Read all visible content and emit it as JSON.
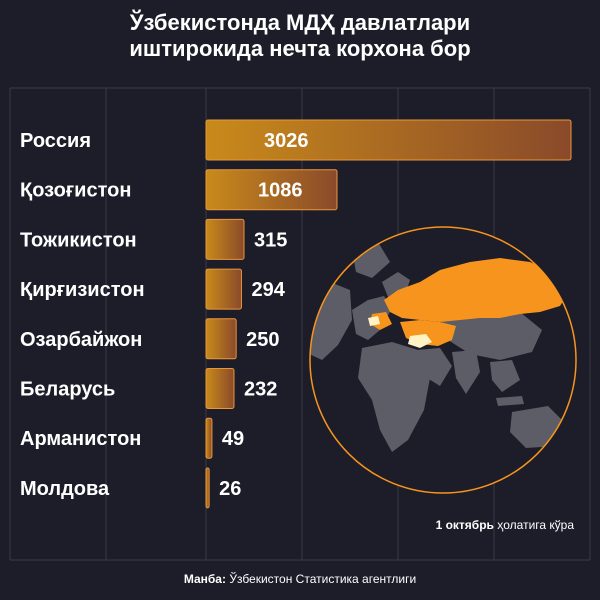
{
  "title_line1": "Ўзбекистонда МДҲ давлатлари",
  "title_line2": "иштирокида нечта корхона бор",
  "note": {
    "date": "1 октябрь",
    "suffix": "ҳолатига кўра"
  },
  "source": {
    "label": "Манба:",
    "text": "Ўзбекистон Статистика агентлиги"
  },
  "colors": {
    "background": "#1c1d29",
    "bar_start": "#c98a1b",
    "bar_end": "#8a4a2a",
    "bar_stroke": "#e8963a",
    "russia_on_map": "#f7941d",
    "other_cis_on_map": "#f7941d",
    "uzbekistan_on_map": "#fff3c4",
    "land": "#5c5d66",
    "globe_outline": "#f7941d",
    "grid": "#3a3b48"
  },
  "chart_data": {
    "type": "bar",
    "orientation": "horizontal",
    "title": "Ўзбекистонда МДҲ давлатлари иштирокида нечта корхона бор",
    "categories": [
      "Россия",
      "Қозоғистон",
      "Тожикистон",
      "Қирғизистон",
      "Озарбайжон",
      "Беларусь",
      "Арманистон",
      "Молдова"
    ],
    "values": [
      3026,
      1086,
      315,
      294,
      250,
      232,
      49,
      26
    ],
    "xlim": [
      0,
      3026
    ],
    "grid": true,
    "legend": "none",
    "icon": "globe-map-icon"
  }
}
